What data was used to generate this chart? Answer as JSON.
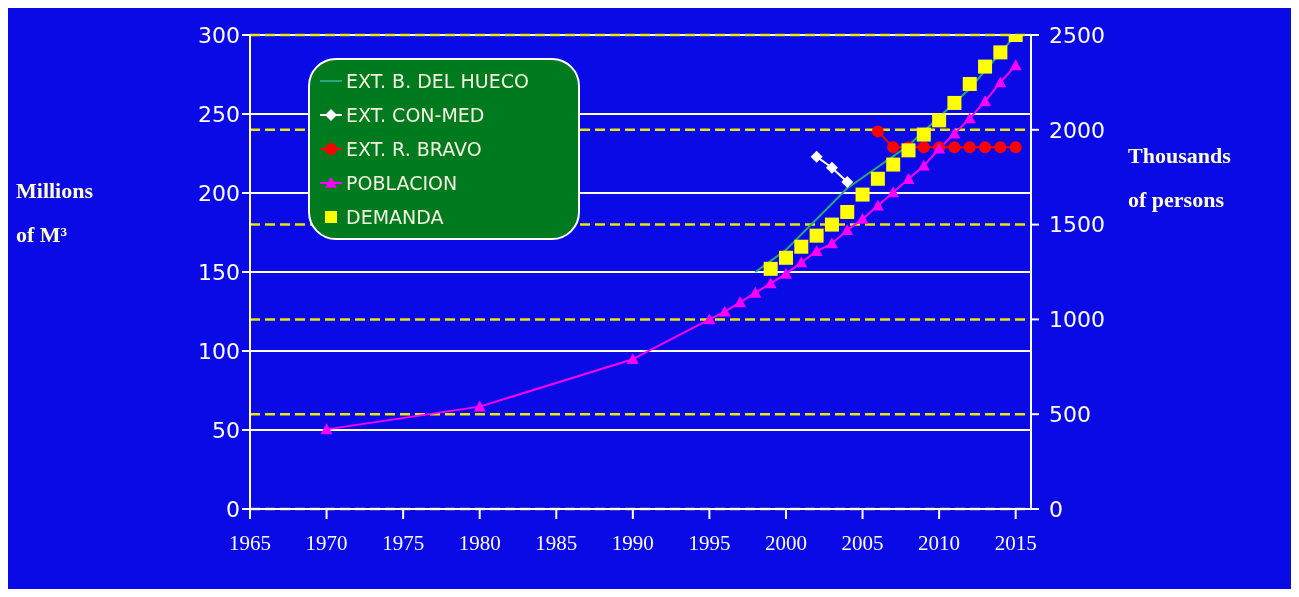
{
  "chart_data": {
    "type": "line",
    "xlabel": null,
    "ylabel": "Millions of M³",
    "y2label": "Thousands of persons",
    "xlim": [
      1965,
      2016
    ],
    "xticks": [
      1965,
      1970,
      1975,
      1980,
      1985,
      1990,
      1995,
      2000,
      2005,
      2010,
      2015
    ],
    "ylim": [
      0,
      300
    ],
    "yticks": [
      0,
      50,
      100,
      150,
      200,
      250,
      300
    ],
    "y2lim": [
      0,
      2500
    ],
    "y2ticks": [
      0,
      500,
      1000,
      1500,
      2000,
      2500
    ],
    "grid": "y",
    "legend": "top left",
    "series": [
      {
        "name": "EXT. B. DEL HUECO",
        "color": "#2aa87a",
        "marker": "none",
        "x": [
          1998,
          2000,
          2004,
          2008,
          2012,
          2015
        ],
        "values": [
          150,
          164,
          203,
          230,
          266,
          300
        ]
      },
      {
        "name": "EXT. CON-MED",
        "color": "#ffffff",
        "marker": "diamond",
        "x": [
          2002,
          2003,
          2004
        ],
        "values": [
          223,
          216,
          207
        ]
      },
      {
        "name": "EXT. R. BRAVO",
        "color": "#ff0000",
        "marker": "circle",
        "x": [
          2006,
          2007,
          2008,
          2009,
          2010,
          2011,
          2012,
          2013,
          2014,
          2015
        ],
        "values": [
          239,
          229,
          229,
          229,
          229,
          229,
          229,
          229,
          229,
          229
        ]
      },
      {
        "name": "POBLACION",
        "type": "line",
        "color": "#ff00ff",
        "marker": "triangle",
        "axis": "y2",
        "x": [
          1970,
          1980,
          1990,
          1995,
          1996,
          1997,
          1998,
          1999,
          2000,
          2001,
          2002,
          2003,
          2004,
          2005,
          2006,
          2007,
          2008,
          2009,
          2010,
          2011,
          2012,
          2013,
          2014,
          2015
        ],
        "values": [
          420,
          540,
          790,
          1000,
          1040,
          1090,
          1140,
          1190,
          1240,
          1300,
          1360,
          1400,
          1470,
          1530,
          1600,
          1670,
          1740,
          1810,
          1900,
          1980,
          2060,
          2150,
          2250,
          2340
        ]
      },
      {
        "name": "DEMANDA",
        "type": "scatter",
        "color": "#ffff00",
        "marker": "square",
        "x": [
          1999,
          2000,
          2001,
          2002,
          2003,
          2004,
          2005,
          2006,
          2007,
          2008,
          2009,
          2010,
          2011,
          2012,
          2013,
          2014,
          2015
        ],
        "values": [
          152,
          159,
          166,
          173,
          180,
          188,
          199,
          209,
          218,
          227,
          237,
          246,
          257,
          269,
          280,
          289,
          300
        ]
      }
    ]
  }
}
